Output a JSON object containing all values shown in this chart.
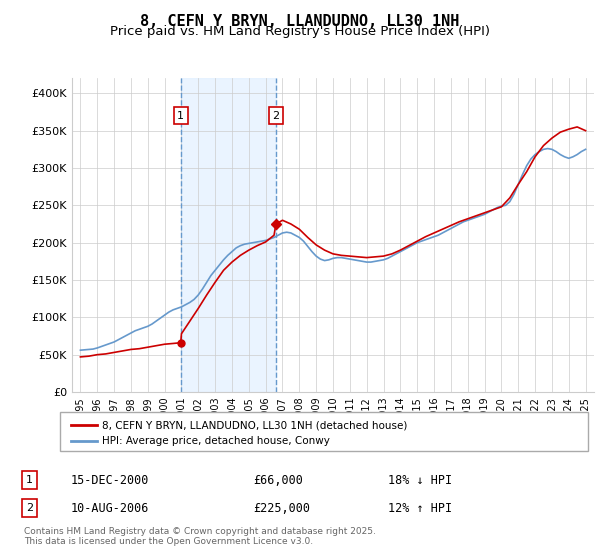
{
  "title": "8, CEFN Y BRYN, LLANDUDNO, LL30 1NH",
  "subtitle": "Price paid vs. HM Land Registry's House Price Index (HPI)",
  "ylabel": "",
  "xlabel": "",
  "background_color": "#ffffff",
  "plot_background": "#ffffff",
  "grid_color": "#cccccc",
  "ylim": [
    0,
    420000
  ],
  "yticks": [
    0,
    50000,
    100000,
    150000,
    200000,
    250000,
    300000,
    350000,
    400000
  ],
  "ytick_labels": [
    "£0",
    "£50K",
    "£100K",
    "£150K",
    "£200K",
    "£250K",
    "£300K",
    "£350K",
    "£400K"
  ],
  "title_fontsize": 11,
  "subtitle_fontsize": 9.5,
  "legend_label_red": "8, CEFN Y BRYN, LLANDUDNO, LL30 1NH (detached house)",
  "legend_label_blue": "HPI: Average price, detached house, Conwy",
  "annotation1_box": "1",
  "annotation1_date": "15-DEC-2000",
  "annotation1_price": "£66,000",
  "annotation1_hpi": "18% ↓ HPI",
  "annotation2_box": "2",
  "annotation2_date": "10-AUG-2006",
  "annotation2_price": "£225,000",
  "annotation2_hpi": "12% ↑ HPI",
  "footer": "Contains HM Land Registry data © Crown copyright and database right 2025.\nThis data is licensed under the Open Government Licence v3.0.",
  "red_color": "#cc0000",
  "blue_color": "#6699cc",
  "shade_color": "#ddeeff",
  "vline1_x": 2000.958,
  "vline2_x": 2006.608,
  "marker1_x": 2000.958,
  "marker1_y": 66000,
  "marker2_x": 2006.608,
  "marker2_y": 225000,
  "hpi_data_x": [
    1995.0,
    1995.25,
    1995.5,
    1995.75,
    1996.0,
    1996.25,
    1996.5,
    1996.75,
    1997.0,
    1997.25,
    1997.5,
    1997.75,
    1998.0,
    1998.25,
    1998.5,
    1998.75,
    1999.0,
    1999.25,
    1999.5,
    1999.75,
    2000.0,
    2000.25,
    2000.5,
    2000.75,
    2001.0,
    2001.25,
    2001.5,
    2001.75,
    2002.0,
    2002.25,
    2002.5,
    2002.75,
    2003.0,
    2003.25,
    2003.5,
    2003.75,
    2004.0,
    2004.25,
    2004.5,
    2004.75,
    2005.0,
    2005.25,
    2005.5,
    2005.75,
    2006.0,
    2006.25,
    2006.5,
    2006.75,
    2007.0,
    2007.25,
    2007.5,
    2007.75,
    2008.0,
    2008.25,
    2008.5,
    2008.75,
    2009.0,
    2009.25,
    2009.5,
    2009.75,
    2010.0,
    2010.25,
    2010.5,
    2010.75,
    2011.0,
    2011.25,
    2011.5,
    2011.75,
    2012.0,
    2012.25,
    2012.5,
    2012.75,
    2013.0,
    2013.25,
    2013.5,
    2013.75,
    2014.0,
    2014.25,
    2014.5,
    2014.75,
    2015.0,
    2015.25,
    2015.5,
    2015.75,
    2016.0,
    2016.25,
    2016.5,
    2016.75,
    2017.0,
    2017.25,
    2017.5,
    2017.75,
    2018.0,
    2018.25,
    2018.5,
    2018.75,
    2019.0,
    2019.25,
    2019.5,
    2019.75,
    2020.0,
    2020.25,
    2020.5,
    2020.75,
    2021.0,
    2021.25,
    2021.5,
    2021.75,
    2022.0,
    2022.25,
    2022.5,
    2022.75,
    2023.0,
    2023.25,
    2023.5,
    2023.75,
    2024.0,
    2024.25,
    2024.5,
    2024.75,
    2025.0
  ],
  "hpi_data_y": [
    56000,
    56500,
    57000,
    57500,
    59000,
    61000,
    63000,
    65000,
    67000,
    70000,
    73000,
    76000,
    79000,
    82000,
    84000,
    86000,
    88000,
    91000,
    95000,
    99000,
    103000,
    107000,
    110000,
    112000,
    114000,
    117000,
    120000,
    124000,
    130000,
    138000,
    147000,
    156000,
    163000,
    170000,
    177000,
    183000,
    188000,
    193000,
    196000,
    198000,
    199000,
    200000,
    201000,
    202000,
    203000,
    205000,
    207000,
    210000,
    213000,
    214000,
    213000,
    210000,
    207000,
    202000,
    195000,
    188000,
    182000,
    178000,
    176000,
    177000,
    179000,
    180000,
    180000,
    179000,
    178000,
    177000,
    176000,
    175000,
    174000,
    174000,
    175000,
    176000,
    177000,
    179000,
    182000,
    185000,
    188000,
    191000,
    194000,
    197000,
    200000,
    202000,
    204000,
    206000,
    208000,
    210000,
    213000,
    216000,
    219000,
    222000,
    225000,
    228000,
    230000,
    232000,
    234000,
    236000,
    238000,
    241000,
    244000,
    247000,
    249000,
    250000,
    255000,
    265000,
    278000,
    291000,
    303000,
    312000,
    318000,
    322000,
    325000,
    326000,
    325000,
    322000,
    318000,
    315000,
    313000,
    315000,
    318000,
    322000,
    325000
  ],
  "price_data_x": [
    1995.0,
    1995.5,
    1996.0,
    1996.5,
    1997.0,
    1997.5,
    1998.0,
    1998.5,
    1999.0,
    1999.5,
    2000.0,
    2000.5,
    2000.958,
    2001.0,
    2001.5,
    2002.0,
    2002.5,
    2003.0,
    2003.5,
    2004.0,
    2004.5,
    2005.0,
    2005.5,
    2006.0,
    2006.5,
    2006.608,
    2007.0,
    2007.5,
    2008.0,
    2008.5,
    2009.0,
    2009.5,
    2010.0,
    2010.5,
    2011.0,
    2011.5,
    2012.0,
    2012.5,
    2013.0,
    2013.5,
    2014.0,
    2014.5,
    2015.0,
    2015.5,
    2016.0,
    2016.5,
    2017.0,
    2017.5,
    2018.0,
    2018.5,
    2019.0,
    2019.5,
    2020.0,
    2020.5,
    2021.0,
    2021.5,
    2022.0,
    2022.5,
    2023.0,
    2023.5,
    2024.0,
    2024.5,
    2025.0
  ],
  "price_data_y": [
    47000,
    48000,
    50000,
    51000,
    53000,
    55000,
    57000,
    58000,
    60000,
    62000,
    64000,
    65000,
    66000,
    78000,
    95000,
    112000,
    130000,
    147000,
    163000,
    174000,
    183000,
    190000,
    196000,
    201000,
    210000,
    225000,
    230000,
    225000,
    218000,
    207000,
    197000,
    190000,
    185000,
    183000,
    182000,
    181000,
    180000,
    181000,
    182000,
    185000,
    190000,
    196000,
    202000,
    208000,
    213000,
    218000,
    223000,
    228000,
    232000,
    236000,
    240000,
    244000,
    248000,
    260000,
    278000,
    295000,
    315000,
    330000,
    340000,
    348000,
    352000,
    355000,
    350000
  ],
  "xticks": [
    1995,
    1996,
    1997,
    1998,
    1999,
    2000,
    2001,
    2002,
    2003,
    2004,
    2005,
    2006,
    2007,
    2008,
    2009,
    2010,
    2011,
    2012,
    2013,
    2014,
    2015,
    2016,
    2017,
    2018,
    2019,
    2020,
    2021,
    2022,
    2023,
    2024,
    2025
  ],
  "xlim": [
    1994.5,
    2025.5
  ]
}
